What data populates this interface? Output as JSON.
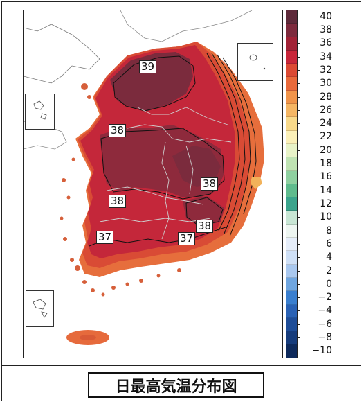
{
  "map": {
    "contour_labels": [
      "39",
      "38",
      "38",
      "38",
      "38",
      "37",
      "37"
    ],
    "colors": {
      "land_max": "#7a2b3c",
      "land_hot": "#a7233b",
      "land_36": "#c4273a",
      "land_34": "#d64a35",
      "land_32": "#e56c3c",
      "land_30": "#ef944c",
      "sea": "#ffffff",
      "neighbor_land": "#ffffff"
    }
  },
  "legend": {
    "ticks": [
      "40",
      "38",
      "36",
      "34",
      "32",
      "30",
      "28",
      "26",
      "24",
      "22",
      "20",
      "18",
      "16",
      "14",
      "12",
      "10",
      "8",
      "6",
      "4",
      "2",
      "0",
      "−10",
      "−8",
      "−6",
      "−4",
      "−2"
    ],
    "tick_order": [
      "40",
      "38",
      "36",
      "34",
      "32",
      "30",
      "28",
      "26",
      "24",
      "22",
      "20",
      "18",
      "16",
      "14",
      "12",
      "10",
      "8",
      "6",
      "4",
      "2",
      "0",
      "−2",
      "−4",
      "−6",
      "−8",
      "−10"
    ],
    "colors": [
      "#5e2a3a",
      "#7d2a3d",
      "#a12236",
      "#c8263a",
      "#dc4a34",
      "#e96a3b",
      "#f0944a",
      "#f5b664",
      "#f8d98a",
      "#fbf0b8",
      "#e8f3c8",
      "#bfe3b3",
      "#8fd0a0",
      "#5fbb8d",
      "#3ba48c",
      "#c8e6d4",
      "#eef6f1",
      "#e6eefa",
      "#cfe0f6",
      "#a9c8ef",
      "#6fa6e0",
      "#3a7fcf",
      "#2a62b5",
      "#1e4d98",
      "#163c7c",
      "#0e2a5c"
    ]
  },
  "caption": "日最高気温分布図"
}
